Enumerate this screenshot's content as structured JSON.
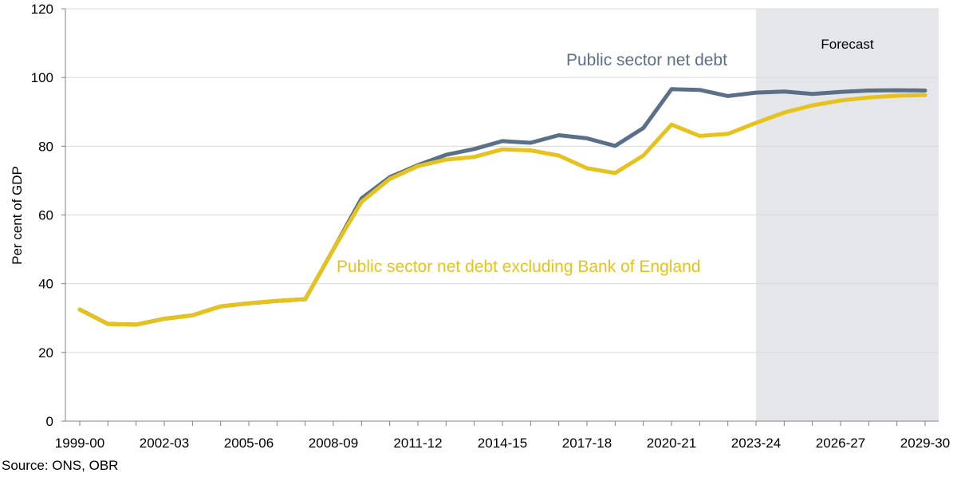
{
  "chart_data": {
    "type": "line",
    "ylabel": "Per cent of GDP",
    "ylim": [
      0,
      120
    ],
    "yticks": [
      0,
      20,
      40,
      60,
      80,
      100,
      120
    ],
    "categories": [
      "1999-00",
      "2000-01",
      "2001-02",
      "2002-03",
      "2003-04",
      "2004-05",
      "2005-06",
      "2006-07",
      "2007-08",
      "2008-09",
      "2009-10",
      "2010-11",
      "2011-12",
      "2012-13",
      "2013-14",
      "2014-15",
      "2015-16",
      "2016-17",
      "2017-18",
      "2018-19",
      "2019-20",
      "2020-21",
      "2021-22",
      "2022-23",
      "2023-24",
      "2024-25",
      "2025-26",
      "2026-27",
      "2027-28",
      "2028-29",
      "2029-30"
    ],
    "xtick_labels": [
      "1999-00",
      "2002-03",
      "2005-06",
      "2008-09",
      "2011-12",
      "2014-15",
      "2017-18",
      "2020-21",
      "2023-24",
      "2026-27",
      "2029-30"
    ],
    "forecast": {
      "label": "Forecast",
      "start": "2023-24"
    },
    "series": [
      {
        "name": "Public sector net debt",
        "color": "#5a6f88",
        "values": [
          32.5,
          28.3,
          28.1,
          29.8,
          30.8,
          33.4,
          34.3,
          35.0,
          35.5,
          50.0,
          64.8,
          71.0,
          74.5,
          77.5,
          79.2,
          81.5,
          81.0,
          83.2,
          82.3,
          80.1,
          85.3,
          96.6,
          96.4,
          94.6,
          95.6,
          95.9,
          95.2,
          95.8,
          96.2,
          96.3,
          96.2
        ]
      },
      {
        "name": "Public sector net debt excluding Bank of England",
        "color": "#e6c21d",
        "values": [
          32.5,
          28.3,
          28.1,
          29.8,
          30.8,
          33.4,
          34.3,
          35.0,
          35.5,
          50.0,
          63.8,
          70.5,
          74.2,
          76.1,
          76.9,
          79.1,
          78.8,
          77.3,
          73.6,
          72.2,
          77.3,
          86.3,
          83.0,
          83.6,
          86.8,
          89.8,
          91.9,
          93.3,
          94.2,
          94.7,
          94.9
        ]
      }
    ]
  },
  "source": "Source: ONS, OBR"
}
